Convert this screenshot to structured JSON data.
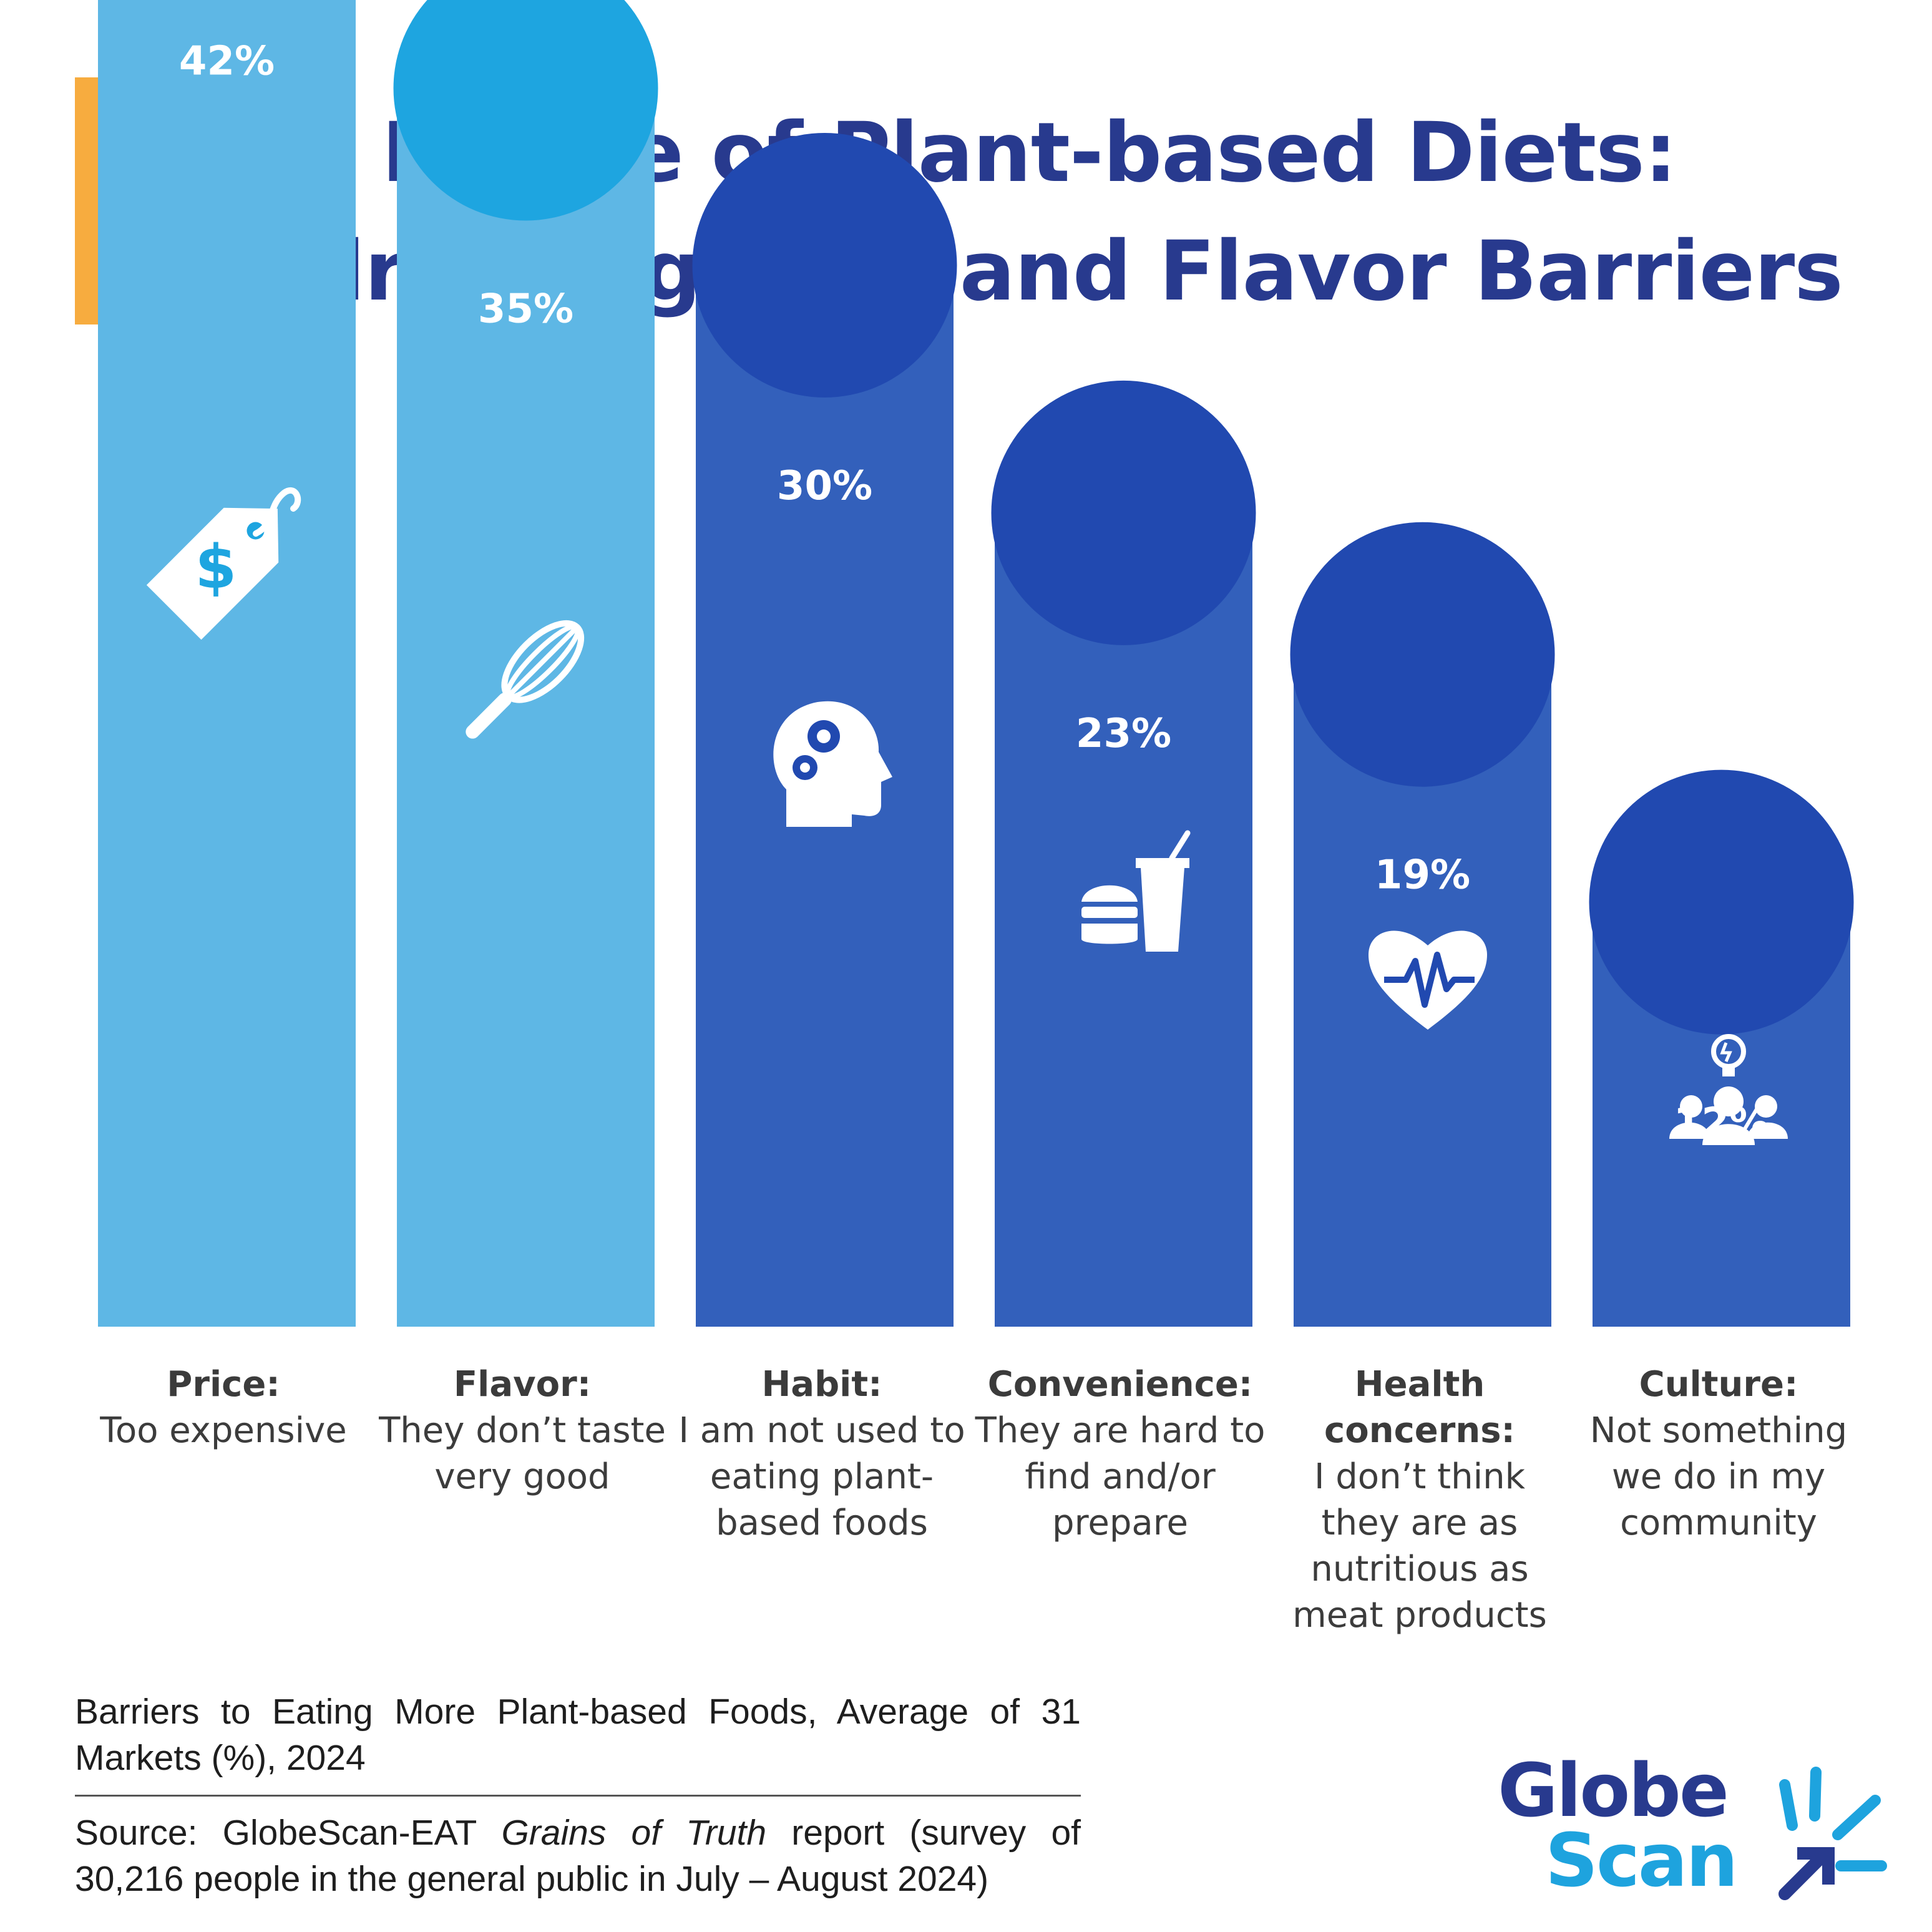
{
  "title": {
    "line1": "The Future of Plant-based Diets:",
    "line2": "Addressing Cost and Flavor Barriers"
  },
  "chart_data": {
    "type": "bar",
    "categories": [
      "Price",
      "Flavor",
      "Habit",
      "Convenience",
      "Health concerns",
      "Culture"
    ],
    "values": [
      42,
      35,
      30,
      23,
      19,
      12
    ],
    "value_labels": [
      "42%",
      "35%",
      "30%",
      "23%",
      "19%",
      "12%"
    ],
    "unit": "%",
    "icons": [
      "price-tag-icon",
      "whisk-icon",
      "mind-gears-icon",
      "fast-food-icon",
      "heart-pulse-icon",
      "community-idea-icon"
    ],
    "bar_colors": [
      "#5EB7E5",
      "#5EB7E5",
      "#3360BB",
      "#3360BB",
      "#3360BB",
      "#3360BB"
    ],
    "circle_colors": [
      "#1EA5E0",
      "#1EA5E0",
      "#2149B0",
      "#2149B0",
      "#2149B0",
      "#2149B0"
    ],
    "grid": false
  },
  "categories": [
    {
      "name": "Price:",
      "desc": "Too expensive"
    },
    {
      "name": "Flavor:",
      "desc": "They don’t taste very good"
    },
    {
      "name": "Habit:",
      "desc": "I am not used to eating plant-based foods"
    },
    {
      "name": "Convenience:",
      "desc": "They are hard to find and/or prepare"
    },
    {
      "name": "Health concerns:",
      "desc": "I don’t think they are as nutritious as meat products"
    },
    {
      "name": "Culture:",
      "desc": "Not something we do in my community"
    }
  ],
  "footnote": {
    "caption": "Barriers to Eating More Plant-based Foods, Average of 31 Markets (%), 2024",
    "source_prefix": "Source: GlobeScan-EAT ",
    "source_title": "Grains of Truth",
    "source_suffix": " report (survey of 30,216 people in the general public in July – August 2024)"
  },
  "logo": {
    "line1": "Globe",
    "line2": "Scan"
  },
  "colors": {
    "title": "#283A8E",
    "accent": "#F7AC3F",
    "light_bar": "#5EB7E5",
    "dark_bar": "#3360BB"
  }
}
